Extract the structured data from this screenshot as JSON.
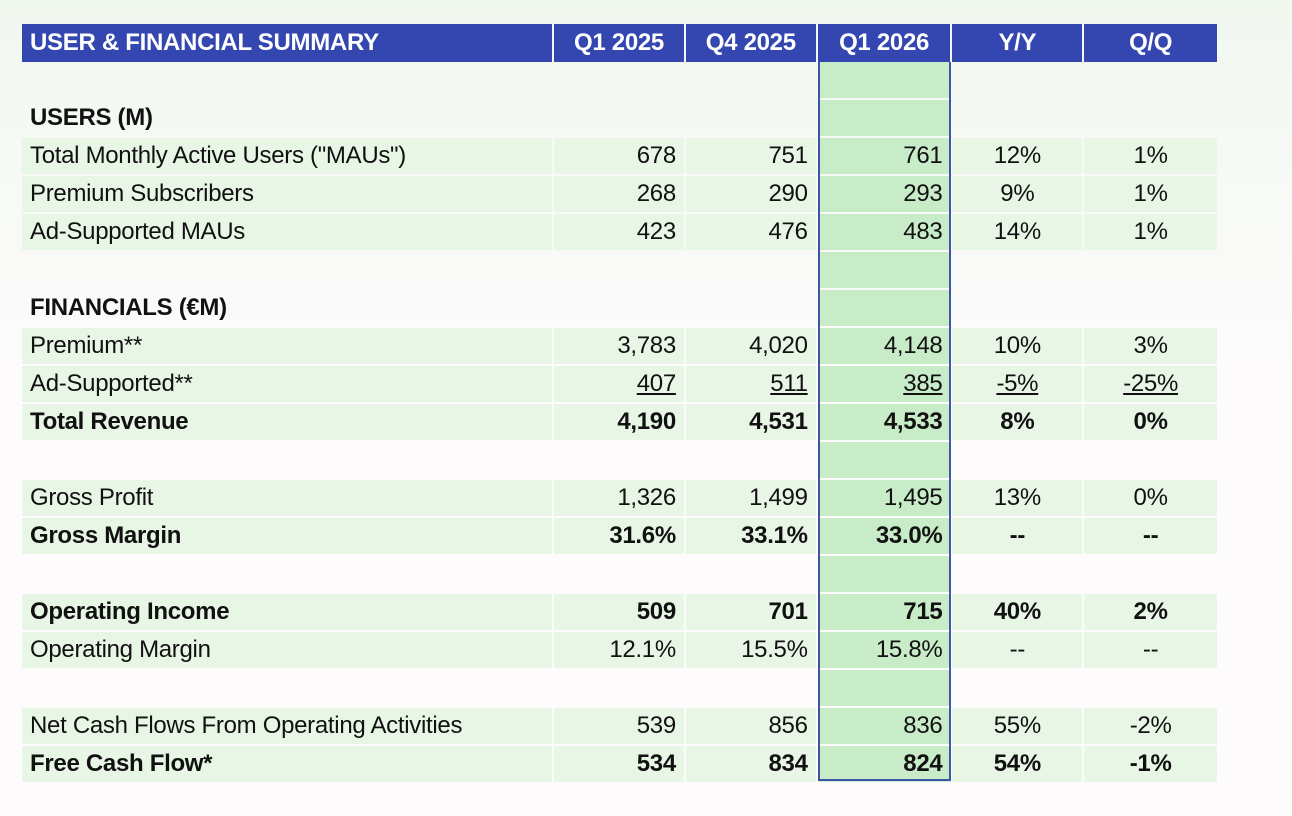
{
  "header": {
    "title": "USER & FINANCIAL SUMMARY",
    "columns": [
      "Q1 2025",
      "Q4 2025",
      "Q1 2026",
      "Y/Y",
      "Q/Q"
    ]
  },
  "highlighted_column": "Q1 2026",
  "colors": {
    "header_bg": "#3446b0",
    "row_bg": "#e8f6e6",
    "highlight_bg": "#c8ebc8",
    "highlight_border": "#3d56a8"
  },
  "sections": {
    "users": "USERS (M)",
    "financials": "FINANCIALS (€M)"
  },
  "rows": {
    "mau": {
      "label": "Total Monthly Active Users (\"MAUs\")",
      "values": [
        "678",
        "751",
        "761",
        "12%",
        "1%"
      ]
    },
    "premium_subs": {
      "label": "Premium Subscribers",
      "values": [
        "268",
        "290",
        "293",
        "9%",
        "1%"
      ]
    },
    "ad_maus": {
      "label": "Ad-Supported MAUs",
      "values": [
        "423",
        "476",
        "483",
        "14%",
        "1%"
      ]
    },
    "premium_rev": {
      "label": "Premium**",
      "values": [
        "3,783",
        "4,020",
        "4,148",
        "10%",
        "3%"
      ]
    },
    "ad_rev": {
      "label": "Ad-Supported**",
      "values": [
        "407",
        "511",
        "385",
        "-5%",
        "-25%"
      ]
    },
    "total_rev": {
      "label": "Total Revenue",
      "values": [
        "4,190",
        "4,531",
        "4,533",
        "8%",
        "0%"
      ]
    },
    "gross_profit": {
      "label": "Gross Profit",
      "values": [
        "1,326",
        "1,499",
        "1,495",
        "13%",
        "0%"
      ]
    },
    "gross_margin": {
      "label": "Gross Margin",
      "values": [
        "31.6%",
        "33.1%",
        "33.0%",
        "--",
        "--"
      ]
    },
    "op_income": {
      "label": "Operating Income",
      "values": [
        "509",
        "701",
        "715",
        "40%",
        "2%"
      ]
    },
    "op_margin": {
      "label": "Operating Margin",
      "values": [
        "12.1%",
        "15.5%",
        "15.8%",
        "--",
        "--"
      ]
    },
    "net_cash": {
      "label": "Net Cash Flows From Operating Activities",
      "values": [
        "539",
        "856",
        "836",
        "55%",
        "-2%"
      ]
    },
    "fcf": {
      "label": "Free Cash Flow*",
      "values": [
        "534",
        "834",
        "824",
        "54%",
        "-1%"
      ]
    }
  }
}
